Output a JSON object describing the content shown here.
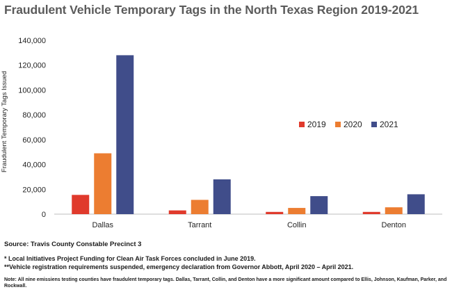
{
  "title": "Fraudulent Vehicle Temporary Tags in the North Texas Region 2019-2021",
  "chart_data": {
    "type": "bar",
    "title": "Fraudulent Vehicle Temporary Tags in the North Texas Region 2019-2021",
    "xlabel": "",
    "ylabel": "Fraudulent Temporary Tags Issued",
    "categories": [
      "Dallas",
      "Tarrant",
      "Collin",
      "Denton"
    ],
    "ylim": [
      0,
      140000
    ],
    "yticks": [
      0,
      20000,
      40000,
      60000,
      80000,
      100000,
      120000,
      140000
    ],
    "ytick_labels": [
      "0",
      "20,000",
      "40,000",
      "60,000",
      "80,000",
      "100,000",
      "120,000",
      "140,000"
    ],
    "grid": false,
    "legend_position": "middle-right",
    "series": [
      {
        "name": "2019",
        "color": "#e03a2c",
        "values": [
          15500,
          3000,
          1800,
          1800
        ]
      },
      {
        "name": "2020",
        "color": "#ec7d31",
        "values": [
          49000,
          11500,
          5000,
          5500
        ]
      },
      {
        "name": "2021",
        "color": "#404d8a",
        "values": [
          128000,
          28000,
          14500,
          16000
        ]
      }
    ]
  },
  "footer": {
    "source": "Source: Travis County Constable Precinct 3",
    "note1": "* Local Initiatives Project Funding for Clean Air Task Forces concluded in June 2019.",
    "note2": "**Vehicle registration requirements suspended, emergency declaration from Governor Abbott, April 2020 – April 2021.",
    "note3": "Note: All nine emissiens testing counties have fraudulent temporary tags.  Dallas, Tarrant, Collin, and Denton have a more significant amount compared to Ellis, Johnson, Kaufman, Parker, and Rockwall."
  }
}
